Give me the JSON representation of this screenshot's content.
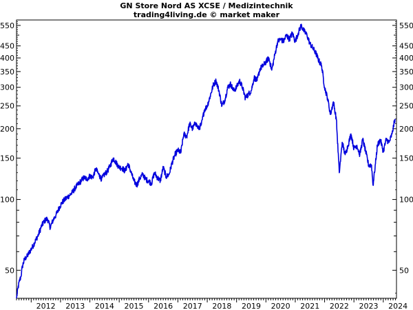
{
  "chart_data": {
    "type": "line",
    "title": "GN Store Nord AS XCSE / Medizintechnik",
    "subtitle": "trading4living.de © market maker",
    "xlabel": "",
    "ylabel": "",
    "y_scale": "log",
    "ylim": [
      38,
      580
    ],
    "xlim": [
      2011.5,
      2024.45
    ],
    "x_ticks": [
      "2012",
      "2013",
      "2014",
      "2015",
      "2016",
      "2017",
      "2018",
      "2019",
      "2020",
      "2021",
      "2022",
      "2023",
      "2024"
    ],
    "y_ticks_labeled": [
      50,
      100,
      150,
      200,
      250,
      300,
      350,
      400,
      450,
      550
    ],
    "y_ticks_minor": [
      60,
      70,
      80,
      90,
      500
    ],
    "grid": false,
    "line_color": "#0000dd",
    "series": [
      {
        "name": "",
        "x": [
          2011.5,
          2011.55,
          2011.6,
          2011.65,
          2011.7,
          2011.78,
          2011.85,
          2011.95,
          2012.05,
          2012.15,
          2012.25,
          2012.35,
          2012.45,
          2012.55,
          2012.65,
          2012.75,
          2012.85,
          2012.95,
          2013.05,
          2013.15,
          2013.3,
          2013.4,
          2013.5,
          2013.6,
          2013.7,
          2013.8,
          2013.9,
          2014.0,
          2014.1,
          2014.2,
          2014.3,
          2014.4,
          2014.5,
          2014.6,
          2014.7,
          2014.8,
          2014.9,
          2015.0,
          2015.1,
          2015.2,
          2015.3,
          2015.4,
          2015.5,
          2015.6,
          2015.7,
          2015.8,
          2015.9,
          2016.0,
          2016.1,
          2016.2,
          2016.3,
          2016.4,
          2016.5,
          2016.6,
          2016.7,
          2016.8,
          2016.9,
          2017.0,
          2017.1,
          2017.2,
          2017.3,
          2017.4,
          2017.5,
          2017.6,
          2017.7,
          2017.8,
          2017.9,
          2018.0,
          2018.1,
          2018.2,
          2018.3,
          2018.4,
          2018.5,
          2018.6,
          2018.7,
          2018.8,
          2018.9,
          2019.0,
          2019.1,
          2019.2,
          2019.3,
          2019.4,
          2019.5,
          2019.6,
          2019.7,
          2019.8,
          2019.9,
          2020.0,
          2020.1,
          2020.2,
          2020.3,
          2020.4,
          2020.5,
          2020.6,
          2020.7,
          2020.8,
          2020.9,
          2021.0,
          2021.1,
          2021.2,
          2021.3,
          2021.4,
          2021.5,
          2021.6,
          2021.7,
          2021.8,
          2021.9,
          2022.0,
          2022.1,
          2022.2,
          2022.3,
          2022.4,
          2022.5,
          2022.55,
          2022.6,
          2022.7,
          2022.8,
          2022.9,
          2023.0,
          2023.1,
          2023.2,
          2023.3,
          2023.4,
          2023.5,
          2023.6,
          2023.65,
          2023.7,
          2023.8,
          2023.9,
          2024.0,
          2024.1,
          2024.2,
          2024.3,
          2024.35,
          2024.4
        ],
        "y": [
          38,
          42,
          45,
          47,
          52,
          56,
          57,
          60,
          63,
          67,
          71,
          77,
          81,
          83,
          76,
          82,
          86,
          92,
          97,
          100,
          104,
          107,
          112,
          116,
          120,
          124,
          122,
          126,
          124,
          135,
          128,
          122,
          128,
          132,
          140,
          150,
          143,
          137,
          136,
          132,
          142,
          131,
          120,
          115,
          123,
          128,
          122,
          120,
          117,
          130,
          124,
          120,
          137,
          125,
          128,
          143,
          155,
          162,
          158,
          190,
          185,
          210,
          200,
          212,
          200,
          208,
          240,
          250,
          275,
          305,
          320,
          290,
          250,
          265,
          300,
          310,
          290,
          300,
          320,
          300,
          270,
          280,
          290,
          330,
          320,
          360,
          370,
          385,
          400,
          355,
          410,
          470,
          480,
          470,
          500,
          480,
          510,
          470,
          510,
          550,
          520,
          500,
          460,
          440,
          420,
          390,
          370,
          300,
          270,
          230,
          260,
          220,
          130,
          150,
          175,
          155,
          170,
          190,
          165,
          170,
          155,
          180,
          160,
          140,
          140,
          115,
          130,
          170,
          180,
          160,
          180,
          175,
          190,
          205,
          220
        ]
      }
    ]
  }
}
